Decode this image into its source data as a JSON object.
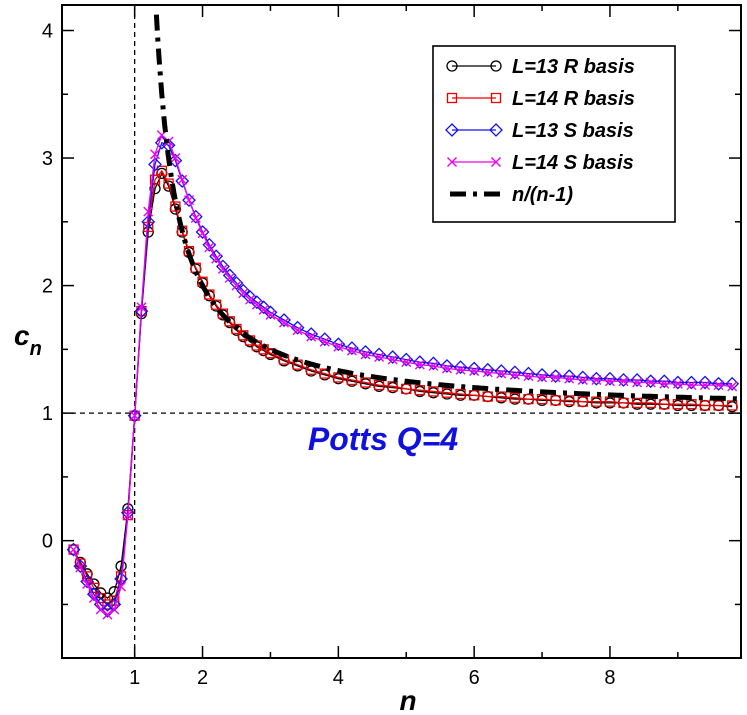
{
  "chart_data": {
    "type": "line",
    "title": "",
    "xlabel": "n",
    "ylabel_main": "c",
    "ylabel_sub": "n",
    "xlim": [
      -0.07,
      9.93
    ],
    "ylim": [
      -0.92,
      4.2
    ],
    "x_ticks": [
      1,
      2,
      4,
      6,
      8
    ],
    "x_tick_labels": [
      "1",
      "2",
      "4",
      "6",
      "8"
    ],
    "y_ticks": [
      0,
      1,
      2,
      3,
      4
    ],
    "y_tick_labels": [
      "0",
      "1",
      "2",
      "3",
      "4"
    ],
    "reference_lines": {
      "vertical_x": 1,
      "horizontal_y": 1
    },
    "annotation": {
      "text": "Potts Q=4",
      "color": "#1111dd"
    },
    "legend_position": "top-right",
    "series": [
      {
        "name": "L=13 R basis",
        "color": "#000000",
        "marker": "circle",
        "x": [
          0.1,
          0.2,
          0.3,
          0.4,
          0.5,
          0.6,
          0.7,
          0.8,
          0.9,
          1.0,
          1.1,
          1.2,
          1.3,
          1.4,
          1.5,
          1.6,
          1.7,
          1.8,
          1.9,
          2.0,
          2.1,
          2.2,
          2.3,
          2.4,
          2.5,
          2.6,
          2.7,
          2.8,
          2.9,
          3.0,
          3.2,
          3.4,
          3.6,
          3.8,
          4.0,
          4.2,
          4.4,
          4.6,
          4.8,
          5.0,
          5.2,
          5.4,
          5.6,
          5.8,
          6.0,
          6.2,
          6.4,
          6.6,
          6.8,
          7.0,
          7.2,
          7.4,
          7.6,
          7.8,
          8.0,
          8.2,
          8.4,
          8.6,
          8.8,
          9.0,
          9.2,
          9.4,
          9.6,
          9.8
        ],
        "y": [
          -0.07,
          -0.17,
          -0.26,
          -0.34,
          -0.41,
          -0.45,
          -0.4,
          -0.2,
          0.25,
          0.98,
          1.78,
          2.42,
          2.76,
          2.88,
          2.78,
          2.6,
          2.42,
          2.26,
          2.13,
          2.02,
          1.92,
          1.84,
          1.77,
          1.71,
          1.65,
          1.6,
          1.56,
          1.52,
          1.49,
          1.46,
          1.41,
          1.37,
          1.33,
          1.3,
          1.27,
          1.25,
          1.23,
          1.21,
          1.2,
          1.19,
          1.17,
          1.16,
          1.15,
          1.14,
          1.14,
          1.13,
          1.12,
          1.11,
          1.11,
          1.1,
          1.1,
          1.09,
          1.09,
          1.08,
          1.08,
          1.08,
          1.07,
          1.07,
          1.07,
          1.06,
          1.06,
          1.06,
          1.06,
          1.05
        ]
      },
      {
        "name": "L=14 R basis",
        "color": "#ee0000",
        "marker": "square",
        "x": [
          0.1,
          0.2,
          0.3,
          0.4,
          0.5,
          0.6,
          0.7,
          0.8,
          0.9,
          1.0,
          1.1,
          1.2,
          1.3,
          1.4,
          1.5,
          1.6,
          1.7,
          1.8,
          1.9,
          2.0,
          2.1,
          2.2,
          2.3,
          2.4,
          2.5,
          2.6,
          2.7,
          2.8,
          2.9,
          3.0,
          3.2,
          3.4,
          3.6,
          3.8,
          4.0,
          4.2,
          4.4,
          4.6,
          4.8,
          5.0,
          5.2,
          5.4,
          5.6,
          5.8,
          6.0,
          6.2,
          6.4,
          6.6,
          6.8,
          7.0,
          7.2,
          7.4,
          7.6,
          7.8,
          8.0,
          8.2,
          8.4,
          8.6,
          8.8,
          9.0,
          9.2,
          9.4,
          9.6,
          9.8
        ],
        "y": [
          -0.07,
          -0.18,
          -0.28,
          -0.37,
          -0.45,
          -0.5,
          -0.47,
          -0.28,
          0.2,
          0.98,
          1.8,
          2.46,
          2.83,
          2.9,
          2.8,
          2.62,
          2.43,
          2.27,
          2.14,
          2.03,
          1.93,
          1.85,
          1.78,
          1.72,
          1.66,
          1.61,
          1.57,
          1.53,
          1.5,
          1.47,
          1.42,
          1.38,
          1.34,
          1.31,
          1.28,
          1.26,
          1.24,
          1.22,
          1.21,
          1.19,
          1.18,
          1.17,
          1.16,
          1.15,
          1.14,
          1.13,
          1.13,
          1.12,
          1.11,
          1.11,
          1.1,
          1.1,
          1.09,
          1.09,
          1.09,
          1.08,
          1.08,
          1.08,
          1.07,
          1.07,
          1.07,
          1.06,
          1.06,
          1.06
        ]
      },
      {
        "name": "L=13 S basis",
        "color": "#1111ee",
        "marker": "diamond",
        "x": [
          0.1,
          0.2,
          0.3,
          0.4,
          0.5,
          0.6,
          0.7,
          0.8,
          0.9,
          1.0,
          1.1,
          1.2,
          1.3,
          1.4,
          1.5,
          1.6,
          1.7,
          1.8,
          1.9,
          2.0,
          2.1,
          2.2,
          2.3,
          2.4,
          2.5,
          2.6,
          2.7,
          2.8,
          2.9,
          3.0,
          3.2,
          3.4,
          3.6,
          3.8,
          4.0,
          4.2,
          4.4,
          4.6,
          4.8,
          5.0,
          5.2,
          5.4,
          5.6,
          5.8,
          6.0,
          6.2,
          6.4,
          6.6,
          6.8,
          7.0,
          7.2,
          7.4,
          7.6,
          7.8,
          8.0,
          8.2,
          8.4,
          8.6,
          8.8,
          9.0,
          9.2,
          9.4,
          9.6,
          9.8
        ],
        "y": [
          -0.07,
          -0.2,
          -0.32,
          -0.42,
          -0.5,
          -0.55,
          -0.5,
          -0.3,
          0.22,
          0.98,
          1.8,
          2.5,
          2.95,
          3.12,
          3.1,
          2.98,
          2.82,
          2.67,
          2.54,
          2.42,
          2.32,
          2.23,
          2.15,
          2.08,
          2.02,
          1.96,
          1.91,
          1.87,
          1.83,
          1.79,
          1.73,
          1.67,
          1.62,
          1.58,
          1.54,
          1.51,
          1.48,
          1.46,
          1.44,
          1.42,
          1.4,
          1.39,
          1.37,
          1.36,
          1.35,
          1.34,
          1.33,
          1.32,
          1.31,
          1.3,
          1.29,
          1.29,
          1.28,
          1.27,
          1.27,
          1.26,
          1.26,
          1.25,
          1.25,
          1.24,
          1.24,
          1.24,
          1.23,
          1.23
        ]
      },
      {
        "name": "L=14 S basis",
        "color": "#ee00ee",
        "marker": "x",
        "x": [
          0.1,
          0.2,
          0.3,
          0.4,
          0.5,
          0.6,
          0.7,
          0.8,
          0.9,
          1.0,
          1.1,
          1.2,
          1.3,
          1.4,
          1.5,
          1.6,
          1.7,
          1.8,
          1.9,
          2.0,
          2.1,
          2.2,
          2.3,
          2.4,
          2.5,
          2.6,
          2.7,
          2.8,
          2.9,
          3.0,
          3.2,
          3.4,
          3.6,
          3.8,
          4.0,
          4.2,
          4.4,
          4.6,
          4.8,
          5.0,
          5.2,
          5.4,
          5.6,
          5.8,
          6.0,
          6.2,
          6.4,
          6.6,
          6.8,
          7.0,
          7.2,
          7.4,
          7.6,
          7.8,
          8.0,
          8.2,
          8.4,
          8.6,
          8.8,
          9.0,
          9.2,
          9.4,
          9.6,
          9.8
        ],
        "y": [
          -0.07,
          -0.21,
          -0.34,
          -0.45,
          -0.54,
          -0.58,
          -0.54,
          -0.36,
          0.2,
          0.98,
          1.83,
          2.58,
          3.03,
          3.18,
          3.13,
          3.0,
          2.83,
          2.67,
          2.53,
          2.41,
          2.3,
          2.21,
          2.13,
          2.06,
          2.0,
          1.94,
          1.89,
          1.85,
          1.81,
          1.77,
          1.71,
          1.65,
          1.6,
          1.56,
          1.52,
          1.49,
          1.46,
          1.44,
          1.42,
          1.4,
          1.38,
          1.37,
          1.35,
          1.34,
          1.33,
          1.32,
          1.31,
          1.3,
          1.29,
          1.28,
          1.28,
          1.27,
          1.26,
          1.26,
          1.25,
          1.25,
          1.24,
          1.24,
          1.23,
          1.23,
          1.22,
          1.22,
          1.22,
          1.21
        ]
      }
    ],
    "reference_curve": {
      "name": "n/(n-1)",
      "color": "#000000",
      "style": "dash-dot",
      "x_range": [
        1.3,
        9.93
      ]
    }
  }
}
